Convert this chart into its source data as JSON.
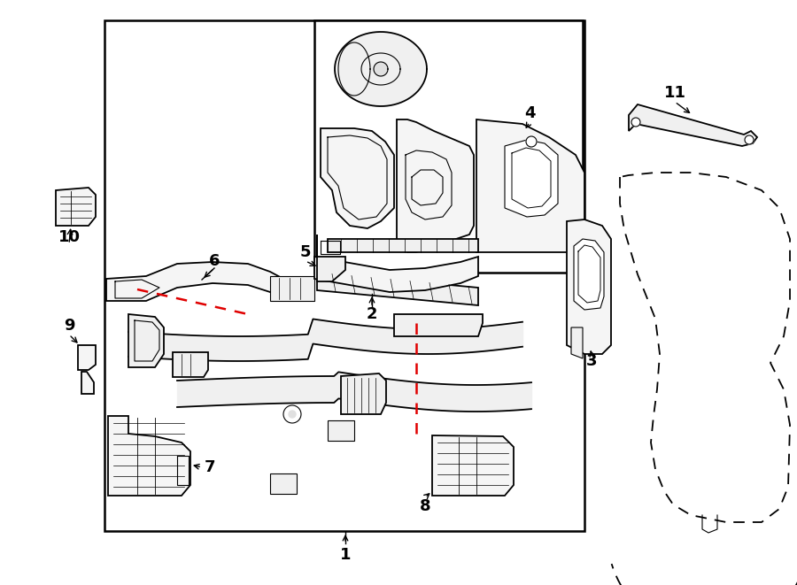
{
  "bg_color": "#ffffff",
  "lc": "#000000",
  "rc": "#e00000",
  "figsize": [
    9.0,
    6.61
  ],
  "dpi": 100
}
